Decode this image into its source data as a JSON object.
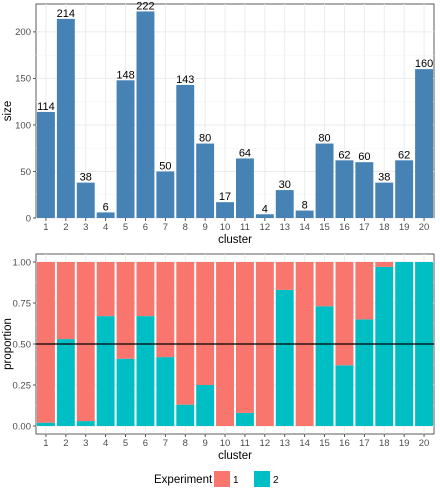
{
  "chart_data": [
    {
      "type": "bar",
      "xlabel": "cluster",
      "ylabel": "size",
      "ylim": [
        0,
        230
      ],
      "yticks": [
        0,
        50,
        100,
        150,
        200
      ],
      "grid": true,
      "bar_color": "#4682B4",
      "categories": [
        "1",
        "2",
        "3",
        "4",
        "5",
        "6",
        "7",
        "8",
        "9",
        "10",
        "11",
        "12",
        "13",
        "14",
        "15",
        "16",
        "17",
        "18",
        "19",
        "20"
      ],
      "values": [
        114,
        214,
        38,
        6,
        148,
        222,
        50,
        143,
        80,
        17,
        64,
        4,
        30,
        8,
        80,
        62,
        60,
        38,
        62,
        160
      ]
    },
    {
      "type": "bar",
      "stacked": true,
      "xlabel": "cluster",
      "ylabel": "proportion",
      "ylim": [
        0,
        1
      ],
      "yticks": [
        0,
        0.25,
        0.5,
        0.75,
        1
      ],
      "ytick_labels": [
        "0.00",
        "0.25",
        "0.50",
        "0.75",
        "1.00"
      ],
      "hline": 0.5,
      "grid": true,
      "categories": [
        "1",
        "2",
        "3",
        "4",
        "5",
        "6",
        "7",
        "8",
        "9",
        "10",
        "11",
        "12",
        "13",
        "14",
        "15",
        "16",
        "17",
        "18",
        "19",
        "20"
      ],
      "series": [
        {
          "name": "1",
          "color": "#F8766D",
          "values": [
            0.98,
            0.47,
            0.97,
            0.33,
            0.59,
            0.33,
            0.58,
            0.87,
            0.75,
            1.0,
            0.92,
            1.0,
            0.17,
            1.0,
            0.27,
            0.63,
            0.35,
            0.03,
            0.0,
            0.0
          ]
        },
        {
          "name": "2",
          "color": "#00BFC4",
          "values": [
            0.02,
            0.53,
            0.03,
            0.67,
            0.41,
            0.67,
            0.42,
            0.13,
            0.25,
            0.0,
            0.08,
            0.0,
            0.83,
            0.0,
            0.73,
            0.37,
            0.65,
            0.97,
            1.0,
            1.0
          ]
        }
      ]
    }
  ],
  "legend": {
    "title": "Experiment",
    "position": "bottom",
    "items": [
      {
        "label": "1",
        "color": "#F8766D"
      },
      {
        "label": "2",
        "color": "#00BFC4"
      }
    ]
  }
}
